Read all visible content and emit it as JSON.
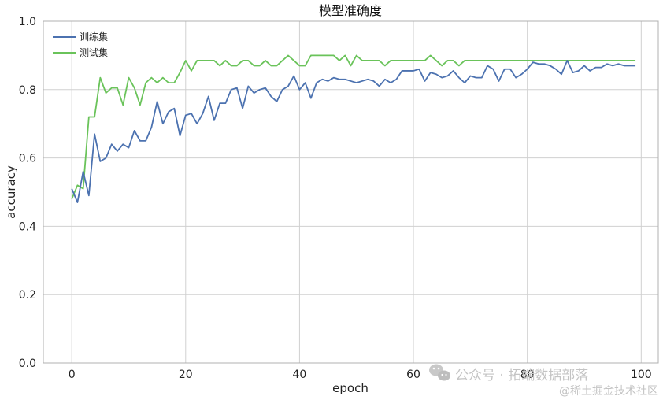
{
  "chart_data": {
    "type": "line",
    "title": "模型准确度",
    "xlabel": "epoch",
    "ylabel": "accuracy",
    "xlim": [
      -5,
      103
    ],
    "ylim": [
      0,
      1
    ],
    "xticks": [
      0,
      20,
      40,
      60,
      80,
      100
    ],
    "yticks": [
      0.0,
      0.2,
      0.4,
      0.6,
      0.8,
      1.0
    ],
    "grid": true,
    "legend_position": "top-left",
    "x": [
      0,
      1,
      2,
      3,
      4,
      5,
      6,
      7,
      8,
      9,
      10,
      11,
      12,
      13,
      14,
      15,
      16,
      17,
      18,
      19,
      20,
      21,
      22,
      23,
      24,
      25,
      26,
      27,
      28,
      29,
      30,
      31,
      32,
      33,
      34,
      35,
      36,
      37,
      38,
      39,
      40,
      41,
      42,
      43,
      44,
      45,
      46,
      47,
      48,
      49,
      50,
      51,
      52,
      53,
      54,
      55,
      56,
      57,
      58,
      59,
      60,
      61,
      62,
      63,
      64,
      65,
      66,
      67,
      68,
      69,
      70,
      71,
      72,
      73,
      74,
      75,
      76,
      77,
      78,
      79,
      80,
      81,
      82,
      83,
      84,
      85,
      86,
      87,
      88,
      89,
      90,
      91,
      92,
      93,
      94,
      95,
      96,
      97,
      98,
      99
    ],
    "series": [
      {
        "name": "训练集",
        "color": "#4c72b0",
        "values": [
          0.51,
          0.47,
          0.56,
          0.49,
          0.67,
          0.59,
          0.6,
          0.64,
          0.62,
          0.64,
          0.63,
          0.68,
          0.65,
          0.65,
          0.69,
          0.765,
          0.7,
          0.735,
          0.745,
          0.665,
          0.725,
          0.73,
          0.7,
          0.73,
          0.78,
          0.71,
          0.76,
          0.76,
          0.8,
          0.805,
          0.745,
          0.81,
          0.79,
          0.8,
          0.805,
          0.78,
          0.765,
          0.8,
          0.81,
          0.84,
          0.8,
          0.82,
          0.775,
          0.82,
          0.83,
          0.825,
          0.835,
          0.83,
          0.83,
          0.825,
          0.82,
          0.825,
          0.83,
          0.825,
          0.81,
          0.83,
          0.82,
          0.83,
          0.855,
          0.855,
          0.855,
          0.86,
          0.825,
          0.85,
          0.845,
          0.835,
          0.84,
          0.855,
          0.835,
          0.82,
          0.84,
          0.835,
          0.835,
          0.87,
          0.86,
          0.825,
          0.86,
          0.86,
          0.835,
          0.845,
          0.86,
          0.88,
          0.875,
          0.875,
          0.87,
          0.86,
          0.845,
          0.885,
          0.85,
          0.855,
          0.87,
          0.855,
          0.865,
          0.865,
          0.875,
          0.87,
          0.875,
          0.87,
          0.87,
          0.87
        ]
      },
      {
        "name": "测试集",
        "color": "#6ac35a",
        "values": [
          0.48,
          0.52,
          0.51,
          0.72,
          0.72,
          0.835,
          0.79,
          0.805,
          0.805,
          0.755,
          0.835,
          0.805,
          0.755,
          0.82,
          0.835,
          0.82,
          0.835,
          0.82,
          0.82,
          0.85,
          0.885,
          0.855,
          0.885,
          0.885,
          0.885,
          0.885,
          0.87,
          0.885,
          0.87,
          0.87,
          0.885,
          0.885,
          0.87,
          0.87,
          0.885,
          0.87,
          0.87,
          0.885,
          0.9,
          0.885,
          0.87,
          0.87,
          0.9,
          0.9,
          0.9,
          0.9,
          0.9,
          0.885,
          0.9,
          0.87,
          0.9,
          0.885,
          0.885,
          0.885,
          0.885,
          0.87,
          0.885,
          0.885,
          0.885,
          0.885,
          0.885,
          0.885,
          0.885,
          0.9,
          0.885,
          0.87,
          0.885,
          0.885,
          0.87,
          0.885,
          0.885,
          0.885,
          0.885,
          0.885,
          0.885,
          0.885,
          0.885,
          0.885,
          0.885,
          0.885,
          0.885,
          0.885,
          0.885,
          0.885,
          0.885,
          0.885,
          0.885,
          0.885,
          0.885,
          0.885,
          0.885,
          0.885,
          0.885,
          0.885,
          0.885,
          0.885,
          0.885,
          0.885,
          0.885,
          0.885
        ]
      }
    ]
  },
  "watermark": {
    "wechat_icon": "wechat-icon",
    "line1": "公众号 · 拓端数据部落",
    "line2": "@稀土掘金技术社区"
  }
}
